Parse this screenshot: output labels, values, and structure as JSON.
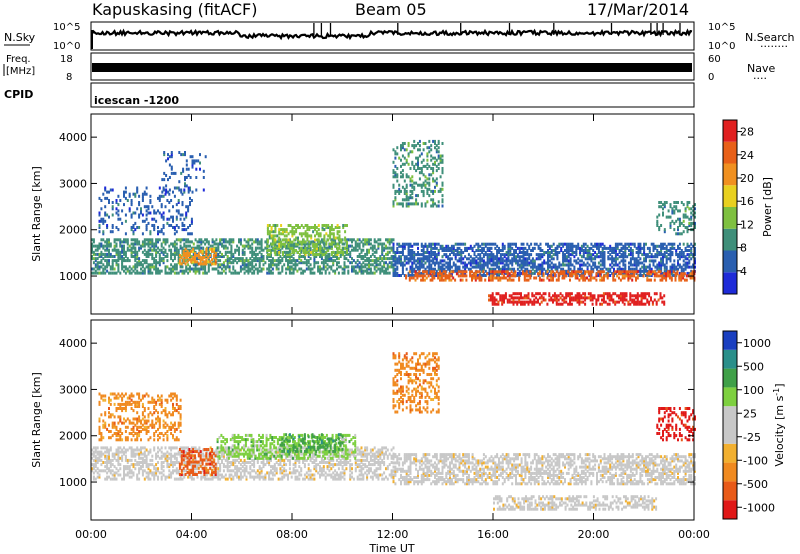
{
  "header": {
    "station": "Kapuskasing (fitACF)",
    "beam": "Beam 05",
    "date": "17/Mar/2014"
  },
  "top_panels": {
    "noise": {
      "left_label": "N.Sky",
      "right_label": "N.Search",
      "right_dots": "········",
      "left_ticks": [
        "10^5",
        "10^0"
      ],
      "right_ticks": [
        "10^5",
        "10^0"
      ]
    },
    "freq": {
      "left_label_1": "Freq.",
      "left_label_2": "[MHz]",
      "left_ticks": [
        "18",
        "8"
      ],
      "right_label": "Nave",
      "right_dots": "····",
      "right_ticks": [
        "60",
        "0"
      ]
    },
    "cpid": {
      "label": "CPID",
      "value": "icescan -1200"
    }
  },
  "colors": {
    "power_scale": [
      "#1e2bd8",
      "#2a5fb0",
      "#3f8f7a",
      "#7ec040",
      "#e8d020",
      "#f09020",
      "#e86018",
      "#e02020"
    ],
    "velocity_scale": [
      "#e01818",
      "#e85a18",
      "#f08a20",
      "#f2b030",
      "#c8c8c8",
      "#c8c8c8",
      "#7ed040",
      "#3fa048",
      "#2a8f8a",
      "#1a3fc0"
    ],
    "velocity_ground": "#c8c8c8"
  },
  "chart_data": [
    {
      "type": "heatmap",
      "name": "Power",
      "ylabel": "Slant Range [km]",
      "xlabel": "",
      "x_ticks": [
        "00:00",
        "04:00",
        "08:00",
        "12:00",
        "16:00",
        "20:00",
        "00:00"
      ],
      "y_ticks": [
        "1000",
        "2000",
        "3000",
        "4000"
      ],
      "xlim_hours": [
        0,
        24
      ],
      "ylim_km": [
        180,
        4500
      ],
      "colorbar": {
        "label": "Power [dB]",
        "ticks": [
          "28",
          "24",
          "20",
          "16",
          "12",
          "8",
          "4"
        ],
        "range": [
          0,
          30
        ]
      },
      "regions": [
        {
          "t0": 0.0,
          "t1": 12.0,
          "r0": 1050,
          "r1": 1800,
          "level": 2,
          "density": 0.55
        },
        {
          "t0": 12.0,
          "t1": 24.0,
          "r0": 1000,
          "r1": 1700,
          "level": 1,
          "density": 0.6
        },
        {
          "t0": 0.3,
          "t1": 4.0,
          "r0": 1900,
          "r1": 2900,
          "level": 1,
          "density": 0.25
        },
        {
          "t0": 2.8,
          "t1": 4.6,
          "r0": 2800,
          "r1": 3700,
          "level": 1,
          "density": 0.15
        },
        {
          "t0": 3.5,
          "t1": 5.0,
          "r0": 1250,
          "r1": 1600,
          "level": 5,
          "density": 0.45
        },
        {
          "t0": 7.0,
          "t1": 10.2,
          "r0": 1450,
          "r1": 2100,
          "level": 3,
          "density": 0.45
        },
        {
          "t0": 12.0,
          "t1": 14.0,
          "r0": 2500,
          "r1": 3900,
          "level": 2,
          "density": 0.3
        },
        {
          "t0": 12.5,
          "t1": 24.0,
          "r0": 900,
          "r1": 1100,
          "level": 6,
          "density": 0.55
        },
        {
          "t0": 15.8,
          "t1": 22.8,
          "r0": 380,
          "r1": 620,
          "level": 7,
          "density": 0.55
        },
        {
          "t0": 22.5,
          "t1": 24.0,
          "r0": 1900,
          "r1": 2600,
          "level": 2,
          "density": 0.3
        }
      ]
    },
    {
      "type": "heatmap",
      "name": "Velocity",
      "ylabel": "Slant Range [km]",
      "xlabel": "Time UT",
      "x_ticks": [
        "00:00",
        "04:00",
        "08:00",
        "12:00",
        "16:00",
        "20:00",
        "00:00"
      ],
      "y_ticks": [
        "1000",
        "2000",
        "3000",
        "4000"
      ],
      "xlim_hours": [
        0,
        24
      ],
      "ylim_km": [
        180,
        4500
      ],
      "colorbar": {
        "label": "Velocity [m s",
        "label_sup": "-1",
        "label_end": "]",
        "ticks": [
          "1000",
          "500",
          "100",
          "25",
          "-25",
          "-100",
          "-500",
          "-1000"
        ],
        "range": [
          -1000,
          1000
        ]
      },
      "regions": [
        {
          "t0": 0.0,
          "t1": 12.0,
          "r0": 1050,
          "r1": 1750,
          "level": 4,
          "density": 0.5
        },
        {
          "t0": 12.0,
          "t1": 24.0,
          "r0": 950,
          "r1": 1600,
          "level": 4,
          "density": 0.55
        },
        {
          "t0": 16.0,
          "t1": 22.5,
          "r0": 400,
          "r1": 700,
          "level": 4,
          "density": 0.5
        },
        {
          "t0": 0.3,
          "t1": 3.6,
          "r0": 1900,
          "r1": 2900,
          "level": 2,
          "density": 0.35
        },
        {
          "t0": 3.5,
          "t1": 5.0,
          "r0": 1150,
          "r1": 1700,
          "level": 1,
          "density": 0.5
        },
        {
          "t0": 5.0,
          "t1": 10.5,
          "r0": 1500,
          "r1": 2000,
          "level": 6,
          "density": 0.45
        },
        {
          "t0": 7.5,
          "t1": 10.0,
          "r0": 1650,
          "r1": 2050,
          "level": 7,
          "density": 0.3
        },
        {
          "t0": 12.0,
          "t1": 13.8,
          "r0": 2500,
          "r1": 3800,
          "level": 2,
          "density": 0.35
        },
        {
          "t0": 22.5,
          "t1": 24.0,
          "r0": 1900,
          "r1": 2600,
          "level": 0,
          "density": 0.35
        }
      ]
    }
  ]
}
